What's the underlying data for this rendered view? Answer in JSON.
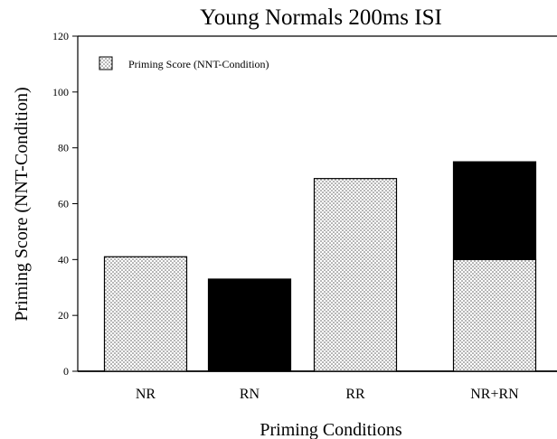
{
  "chart_data": {
    "type": "bar",
    "title": "Young Normals 200ms ISI",
    "xlabel": "Priming Conditions",
    "ylabel": "Priming Score (NNT-Condition)",
    "ylim": [
      0,
      120
    ],
    "yticks": [
      0,
      20,
      40,
      60,
      80,
      100,
      120
    ],
    "grid": false,
    "legend": {
      "placement": "top-left",
      "entries": [
        "Priming Score (NNT-Condition)"
      ]
    },
    "categories": [
      "NR",
      "RN",
      "RR",
      "NR+RN"
    ],
    "bars": [
      {
        "category": "NR",
        "segments": [
          {
            "value": 41,
            "fill": "dotted"
          }
        ]
      },
      {
        "category": "RN",
        "segments": [
          {
            "value": 33,
            "fill": "solid"
          }
        ]
      },
      {
        "category": "RR",
        "segments": [
          {
            "value": 69,
            "fill": "dotted"
          }
        ]
      },
      {
        "category": "NR+RN",
        "segments": [
          {
            "value": 40,
            "fill": "dotted"
          },
          {
            "value": 35,
            "fill": "solid"
          }
        ]
      }
    ],
    "colors": {
      "solid": "#000000",
      "dot": "#555555",
      "background": "#ffffff",
      "axis": "#000000"
    }
  }
}
